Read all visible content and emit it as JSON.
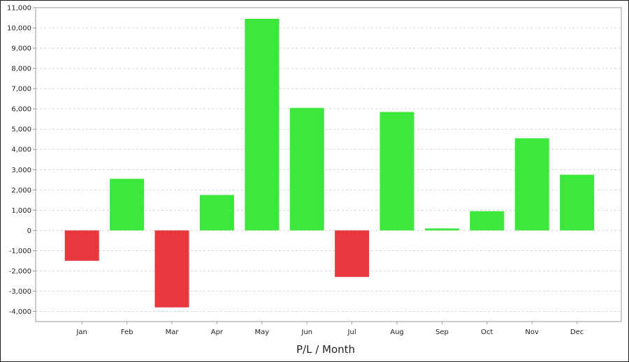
{
  "chart_data": {
    "type": "bar",
    "title": "",
    "xlabel": "P/L / Month",
    "ylabel": "",
    "categories": [
      "Jan",
      "Feb",
      "Mar",
      "Apr",
      "May",
      "Jun",
      "Jul",
      "Aug",
      "Sep",
      "Oct",
      "Nov",
      "Dec"
    ],
    "values": [
      -1500,
      2550,
      -3800,
      1750,
      10450,
      6050,
      -2300,
      5850,
      100,
      950,
      4550,
      2750
    ],
    "ylim": [
      -4500,
      11000
    ],
    "yticks": [
      11000,
      10000,
      9000,
      8000,
      7000,
      6000,
      5000,
      4000,
      3000,
      2000,
      1000,
      0,
      -1000,
      -2000,
      -3000,
      -4000
    ],
    "ytick_labels": [
      "11,000",
      "10,000",
      "9,000",
      "8,000",
      "7,000",
      "6,000",
      "5,000",
      "4,000",
      "3,000",
      "2,000",
      "1,000",
      "0",
      "-1,000",
      "-2,000",
      "-3,000",
      "-4,000"
    ],
    "grid": true,
    "legend": "none",
    "colors": {
      "positive": "#3de83d",
      "negative": "#e8383d",
      "grid": "#d4d4d4",
      "axis": "#9a9a9a"
    }
  }
}
